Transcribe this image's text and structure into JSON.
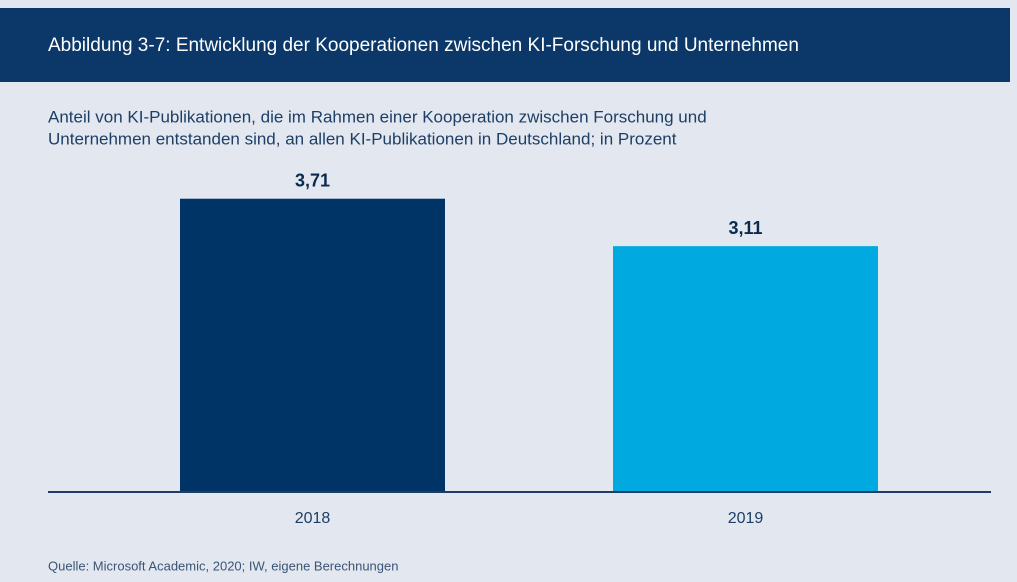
{
  "chart_data": {
    "type": "bar",
    "title": "Abbildung 3-7: Entwicklung der Kooperationen zwischen KI-Forschung und Unternehmen",
    "subtitle": [
      "Anteil von KI-Publikationen, die im Rahmen einer Kooperation zwischen Forschung und",
      "Unternehmen entstanden sind, an allen KI-Publikationen in Deutschland; in Prozent"
    ],
    "categories": [
      "2018",
      "2019"
    ],
    "values": [
      3.71,
      3.11
    ],
    "value_labels": [
      "3,71",
      "3,11"
    ],
    "colors": [
      "#003366",
      "#00a9e0"
    ],
    "ylim": [
      0,
      4.2
    ],
    "source": "Quelle: Microsoft Academic, 2020; IW, eigene Berechnungen"
  }
}
